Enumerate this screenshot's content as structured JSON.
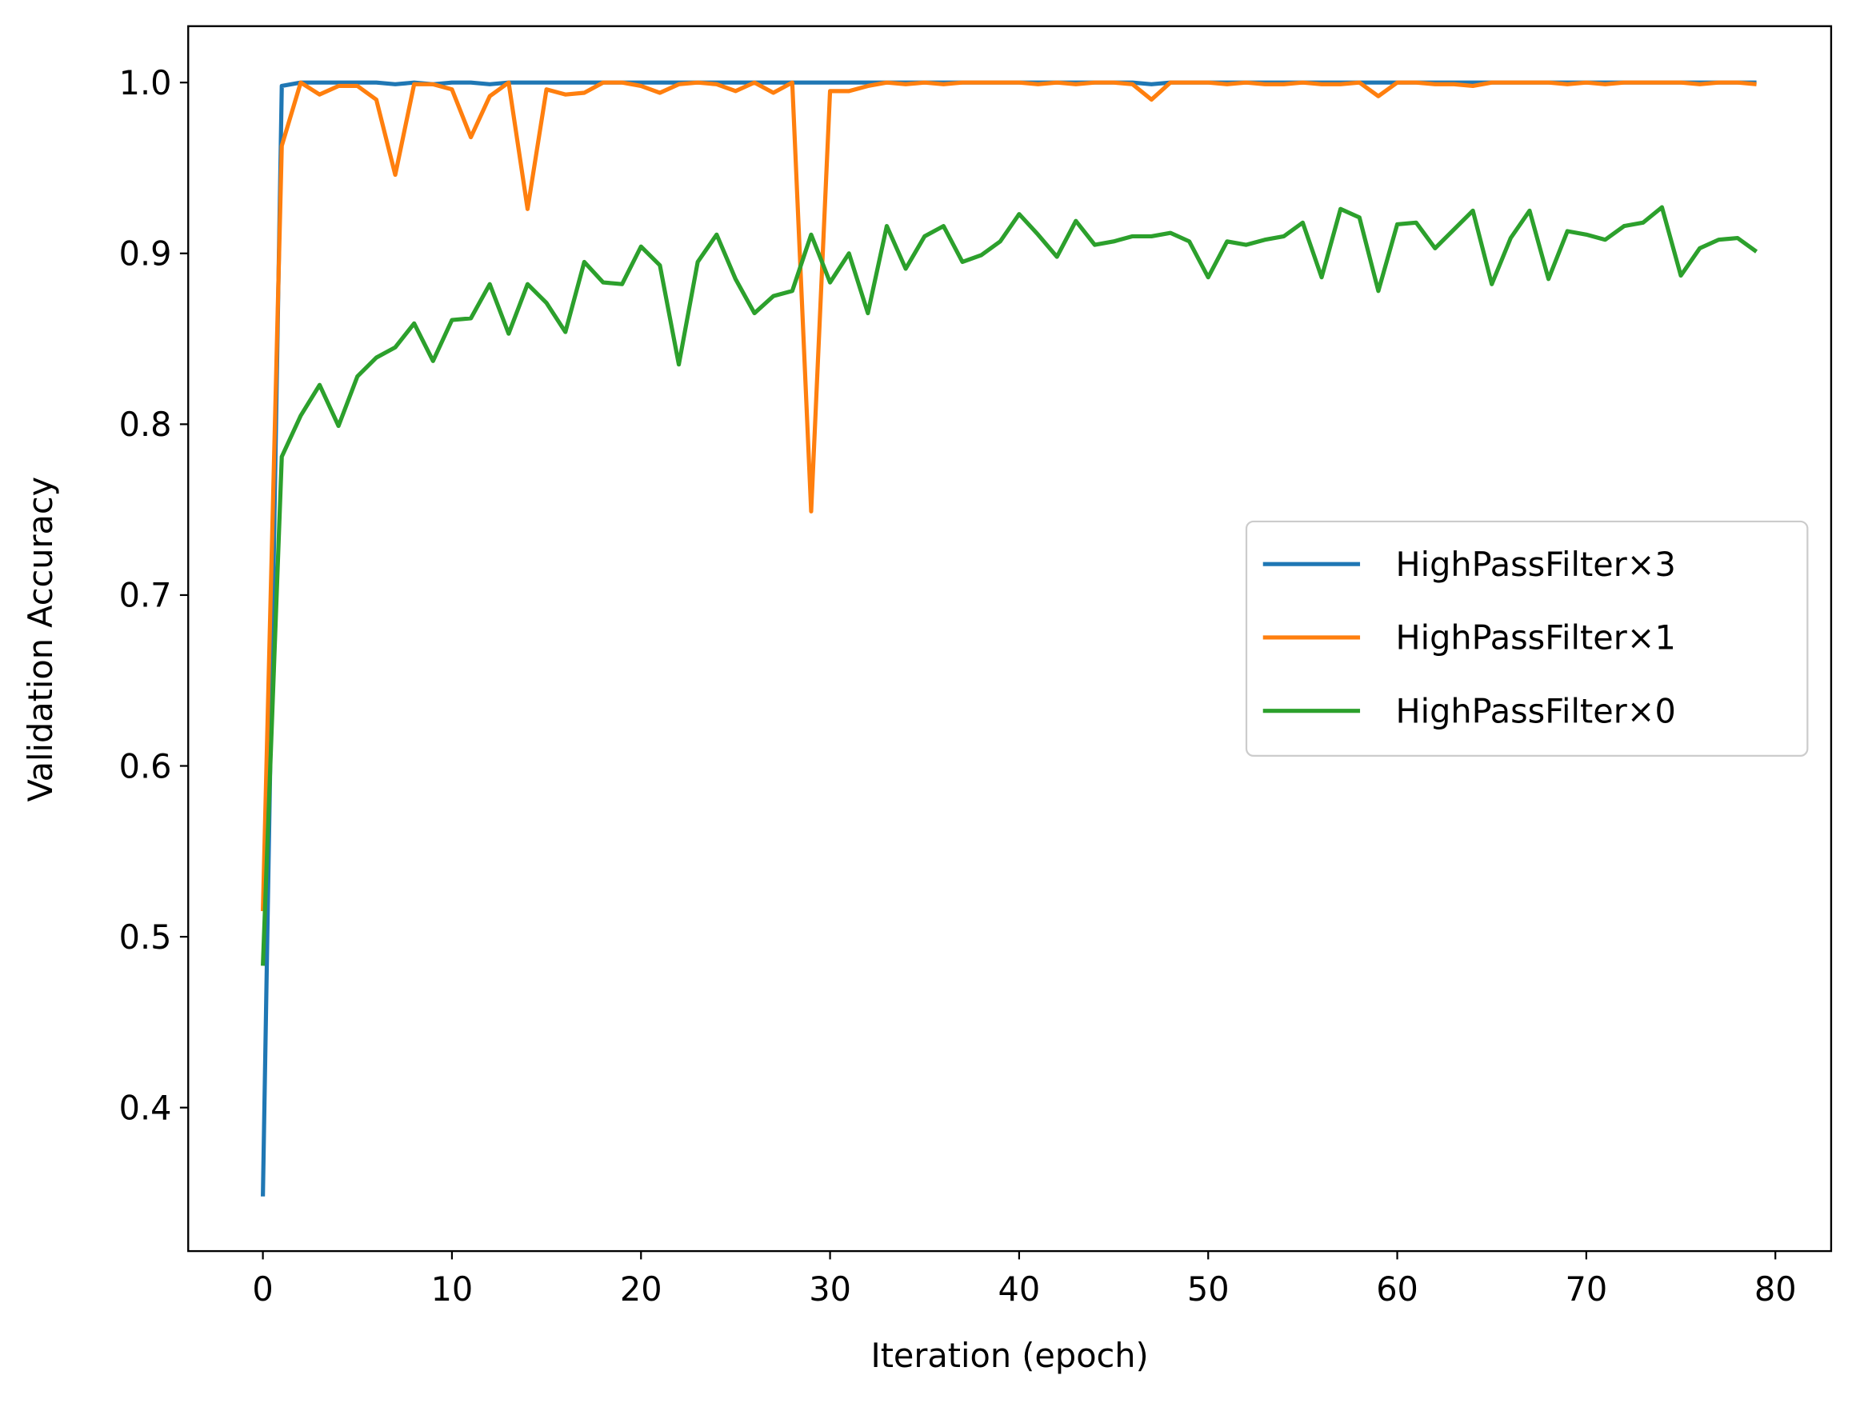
{
  "chart_data": {
    "type": "line",
    "xlabel": "Iteration (epoch)",
    "ylabel": "Validation Accuracy",
    "x": [
      0,
      1,
      2,
      3,
      4,
      5,
      6,
      7,
      8,
      9,
      10,
      11,
      12,
      13,
      14,
      15,
      16,
      17,
      18,
      19,
      20,
      21,
      22,
      23,
      24,
      25,
      26,
      27,
      28,
      29,
      30,
      31,
      32,
      33,
      34,
      35,
      36,
      37,
      38,
      39,
      40,
      41,
      42,
      43,
      44,
      45,
      46,
      47,
      48,
      49,
      50,
      51,
      52,
      53,
      54,
      55,
      56,
      57,
      58,
      59,
      60,
      61,
      62,
      63,
      64,
      65,
      66,
      67,
      68,
      69,
      70,
      71,
      72,
      73,
      74,
      75,
      76,
      77,
      78,
      79
    ],
    "series": [
      {
        "name": "HighPassFilter×3",
        "color": "#1f77b4",
        "values": [
          0.348,
          0.998,
          1.0,
          1.0,
          1.0,
          1.0,
          1.0,
          0.999,
          1.0,
          0.999,
          1.0,
          1.0,
          0.999,
          1.0,
          1.0,
          1.0,
          1.0,
          1.0,
          1.0,
          1.0,
          1.0,
          1.0,
          1.0,
          1.0,
          1.0,
          1.0,
          1.0,
          1.0,
          1.0,
          1.0,
          1.0,
          1.0,
          1.0,
          1.0,
          1.0,
          1.0,
          1.0,
          1.0,
          1.0,
          1.0,
          1.0,
          1.0,
          1.0,
          1.0,
          1.0,
          1.0,
          1.0,
          0.999,
          1.0,
          1.0,
          1.0,
          1.0,
          1.0,
          1.0,
          1.0,
          1.0,
          1.0,
          1.0,
          1.0,
          1.0,
          1.0,
          1.0,
          1.0,
          1.0,
          1.0,
          1.0,
          1.0,
          1.0,
          1.0,
          1.0,
          1.0,
          1.0,
          1.0,
          1.0,
          1.0,
          1.0,
          1.0,
          1.0,
          1.0,
          1.0
        ]
      },
      {
        "name": "HighPassFilter×1",
        "color": "#ff7f0e",
        "values": [
          0.515,
          0.963,
          1.0,
          0.993,
          0.998,
          0.998,
          0.99,
          0.946,
          0.999,
          0.999,
          0.996,
          0.968,
          0.992,
          1.0,
          0.926,
          0.996,
          0.993,
          0.994,
          1.0,
          1.0,
          0.998,
          0.994,
          0.999,
          1.0,
          0.999,
          0.995,
          1.0,
          0.994,
          1.0,
          0.749,
          0.995,
          0.995,
          0.998,
          1.0,
          0.999,
          1.0,
          0.999,
          1.0,
          1.0,
          1.0,
          1.0,
          0.999,
          1.0,
          0.999,
          1.0,
          1.0,
          0.999,
          0.99,
          1.0,
          1.0,
          1.0,
          0.999,
          1.0,
          0.999,
          0.999,
          1.0,
          0.999,
          0.999,
          1.0,
          0.992,
          1.0,
          1.0,
          0.999,
          0.999,
          0.998,
          1.0,
          1.0,
          1.0,
          1.0,
          0.999,
          1.0,
          0.999,
          1.0,
          1.0,
          1.0,
          1.0,
          0.999,
          1.0,
          1.0,
          0.999
        ]
      },
      {
        "name": "HighPassFilter×0",
        "color": "#2ca02c",
        "values": [
          0.483,
          0.781,
          0.805,
          0.823,
          0.799,
          0.828,
          0.839,
          0.845,
          0.859,
          0.837,
          0.861,
          0.862,
          0.882,
          0.853,
          0.882,
          0.871,
          0.854,
          0.895,
          0.883,
          0.882,
          0.904,
          0.893,
          0.835,
          0.895,
          0.911,
          0.885,
          0.865,
          0.875,
          0.878,
          0.911,
          0.883,
          0.9,
          0.865,
          0.916,
          0.891,
          0.91,
          0.916,
          0.895,
          0.899,
          0.907,
          0.923,
          0.911,
          0.898,
          0.919,
          0.905,
          0.907,
          0.91,
          0.91,
          0.912,
          0.907,
          0.886,
          0.907,
          0.905,
          0.908,
          0.91,
          0.918,
          0.886,
          0.926,
          0.921,
          0.878,
          0.917,
          0.918,
          0.903,
          0.914,
          0.925,
          0.882,
          0.909,
          0.925,
          0.885,
          0.913,
          0.911,
          0.908,
          0.916,
          0.918,
          0.927,
          0.887,
          0.903,
          0.908,
          0.909,
          0.901
        ]
      }
    ],
    "xlim": [
      -3.95,
      82.95
    ],
    "ylim": [
      0.316,
      1.033
    ],
    "xticks": [
      0,
      10,
      20,
      30,
      40,
      50,
      60,
      70,
      80
    ],
    "yticks": [
      0.4,
      0.5,
      0.6,
      0.7,
      0.8,
      0.9,
      {
        "value": 1.0,
        "label": "1.0"
      }
    ],
    "legend": "center right",
    "grid": false
  }
}
